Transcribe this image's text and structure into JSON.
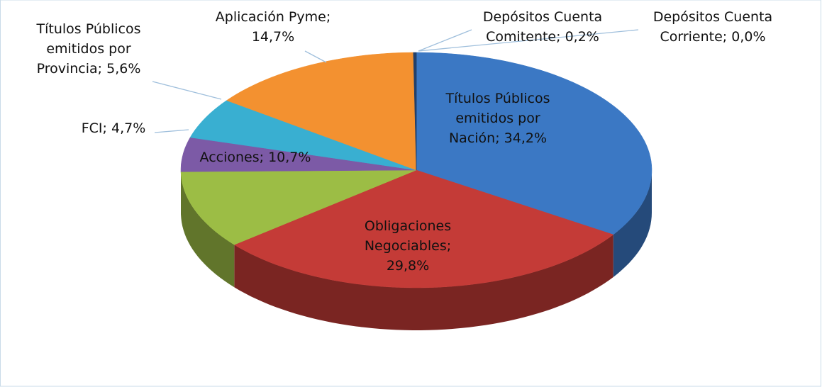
{
  "chart_data": {
    "type": "pie3d",
    "categories": [
      "Títulos Públicos emitidos por Nación",
      "Obligaciones Negociables",
      "Acciones",
      "FCI",
      "Títulos Públicos emitidos por Provincia",
      "Aplicación Pyme",
      "Depósitos Cuenta Comitente",
      "Depósitos Cuenta Corriente"
    ],
    "values": [
      34.2,
      29.8,
      10.7,
      4.7,
      5.6,
      14.7,
      0.2,
      0.0
    ],
    "value_labels": [
      "34,2%",
      "29,8%",
      "10,7%",
      "4,7%",
      "5,6%",
      "14,7%",
      "0,2%",
      "0,0%"
    ],
    "label_separator": "; ",
    "colors": [
      "#3b78c4",
      "#c43b37",
      "#9cbd45",
      "#7c5aa6",
      "#39afd1",
      "#f39130",
      "#22406b",
      "#22406b"
    ]
  }
}
